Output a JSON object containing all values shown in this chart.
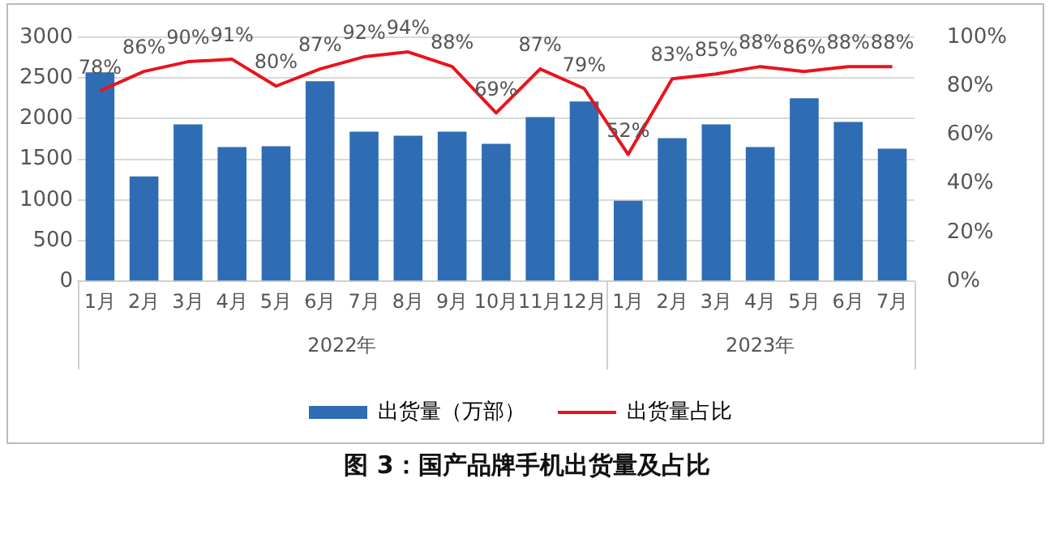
{
  "chart_data": {
    "type": "bar",
    "title": "图 3：国产品牌手机出货量及占比",
    "categories": [
      "1月",
      "2月",
      "3月",
      "4月",
      "5月",
      "6月",
      "7月",
      "8月",
      "9月",
      "10月",
      "11月",
      "12月",
      "1月",
      "2月",
      "3月",
      "4月",
      "5月",
      "6月",
      "7月"
    ],
    "series": [
      {
        "name": "出货量（万部）",
        "color": "#2e6db4",
        "values": [
          2570,
          1290,
          1930,
          1650,
          1660,
          2460,
          1840,
          1790,
          1840,
          1690,
          2020,
          2210,
          990,
          1760,
          1930,
          1650,
          2250,
          1960,
          1630
        ]
      },
      {
        "name": "出货量占比",
        "type": "line",
        "axis": "y2",
        "color": "#e8141c",
        "marker": "none",
        "values": [
          78,
          86,
          90,
          91,
          80,
          87,
          92,
          94,
          88,
          69,
          87,
          79,
          52,
          83,
          85,
          88,
          86,
          88,
          88
        ],
        "value_labels": [
          "78%",
          "86%",
          "90%",
          "91%",
          "80%",
          "87%",
          "92%",
          "94%",
          "88%",
          "69%",
          "87%",
          "79%",
          "52%",
          "83%",
          "85%",
          "88%",
          "86%",
          "88%",
          "88%"
        ]
      }
    ],
    "ylim": [
      0,
      3000
    ],
    "yticks": [
      0,
      500,
      1000,
      1500,
      2000,
      2500,
      3000
    ],
    "y2lim": [
      0,
      100
    ],
    "y2ticks": [
      {
        "value": 0,
        "label": "0%"
      },
      {
        "value": 20,
        "label": "20%"
      },
      {
        "value": 40,
        "label": "40%"
      },
      {
        "value": 60,
        "label": "60%"
      },
      {
        "value": 80,
        "label": "80%"
      },
      {
        "value": 100,
        "label": "100%"
      }
    ],
    "grid": "y",
    "legend": "bottom",
    "annotations": [
      "2022年",
      "2023年"
    ]
  }
}
